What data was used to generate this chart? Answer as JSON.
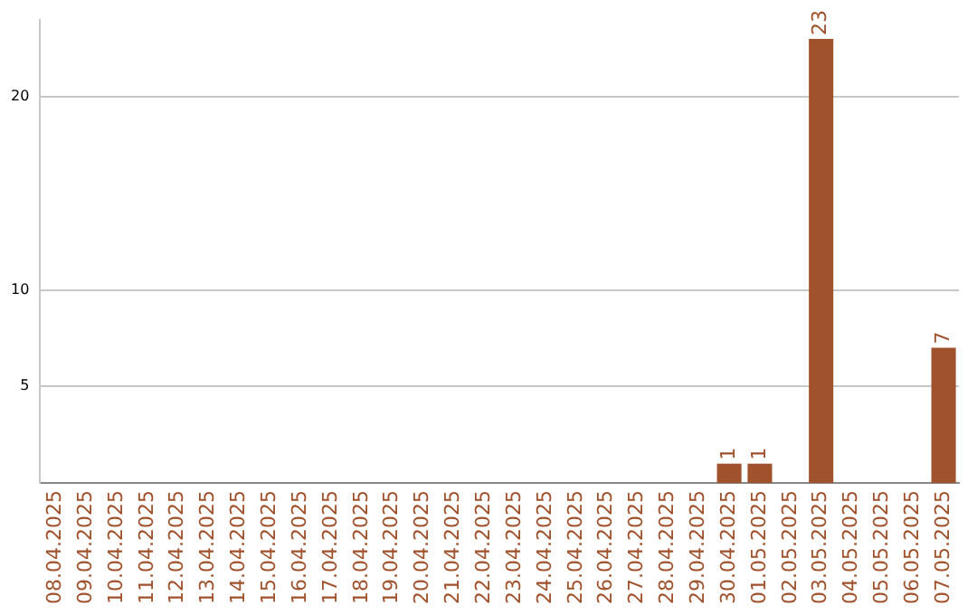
{
  "chart_data": {
    "type": "bar",
    "categories": [
      "08.04.2025",
      "09.04.2025",
      "10.04.2025",
      "11.04.2025",
      "12.04.2025",
      "13.04.2025",
      "14.04.2025",
      "15.04.2025",
      "16.04.2025",
      "17.04.2025",
      "18.04.2025",
      "19.04.2025",
      "20.04.2025",
      "21.04.2025",
      "22.04.2025",
      "23.04.2025",
      "24.04.2025",
      "25.04.2025",
      "26.04.2025",
      "27.04.2025",
      "28.04.2025",
      "29.04.2025",
      "30.04.2025",
      "01.05.2025",
      "02.05.2025",
      "03.05.2025",
      "04.05.2025",
      "05.05.2025",
      "06.05.2025",
      "07.05.2025"
    ],
    "values": [
      0,
      0,
      0,
      0,
      0,
      0,
      0,
      0,
      0,
      0,
      0,
      0,
      0,
      0,
      0,
      0,
      0,
      0,
      0,
      0,
      0,
      0,
      1,
      1,
      0,
      23,
      0,
      0,
      0,
      7
    ],
    "value_labels": [
      null,
      null,
      null,
      null,
      null,
      null,
      null,
      null,
      null,
      null,
      null,
      null,
      null,
      null,
      null,
      null,
      null,
      null,
      null,
      null,
      null,
      null,
      "1",
      "1",
      null,
      "23",
      null,
      null,
      null,
      "7"
    ],
    "color": "#a0522d",
    "ylim": [
      0,
      24
    ],
    "yticks": [
      5,
      10,
      20
    ],
    "grid": "y",
    "legend": false
  }
}
